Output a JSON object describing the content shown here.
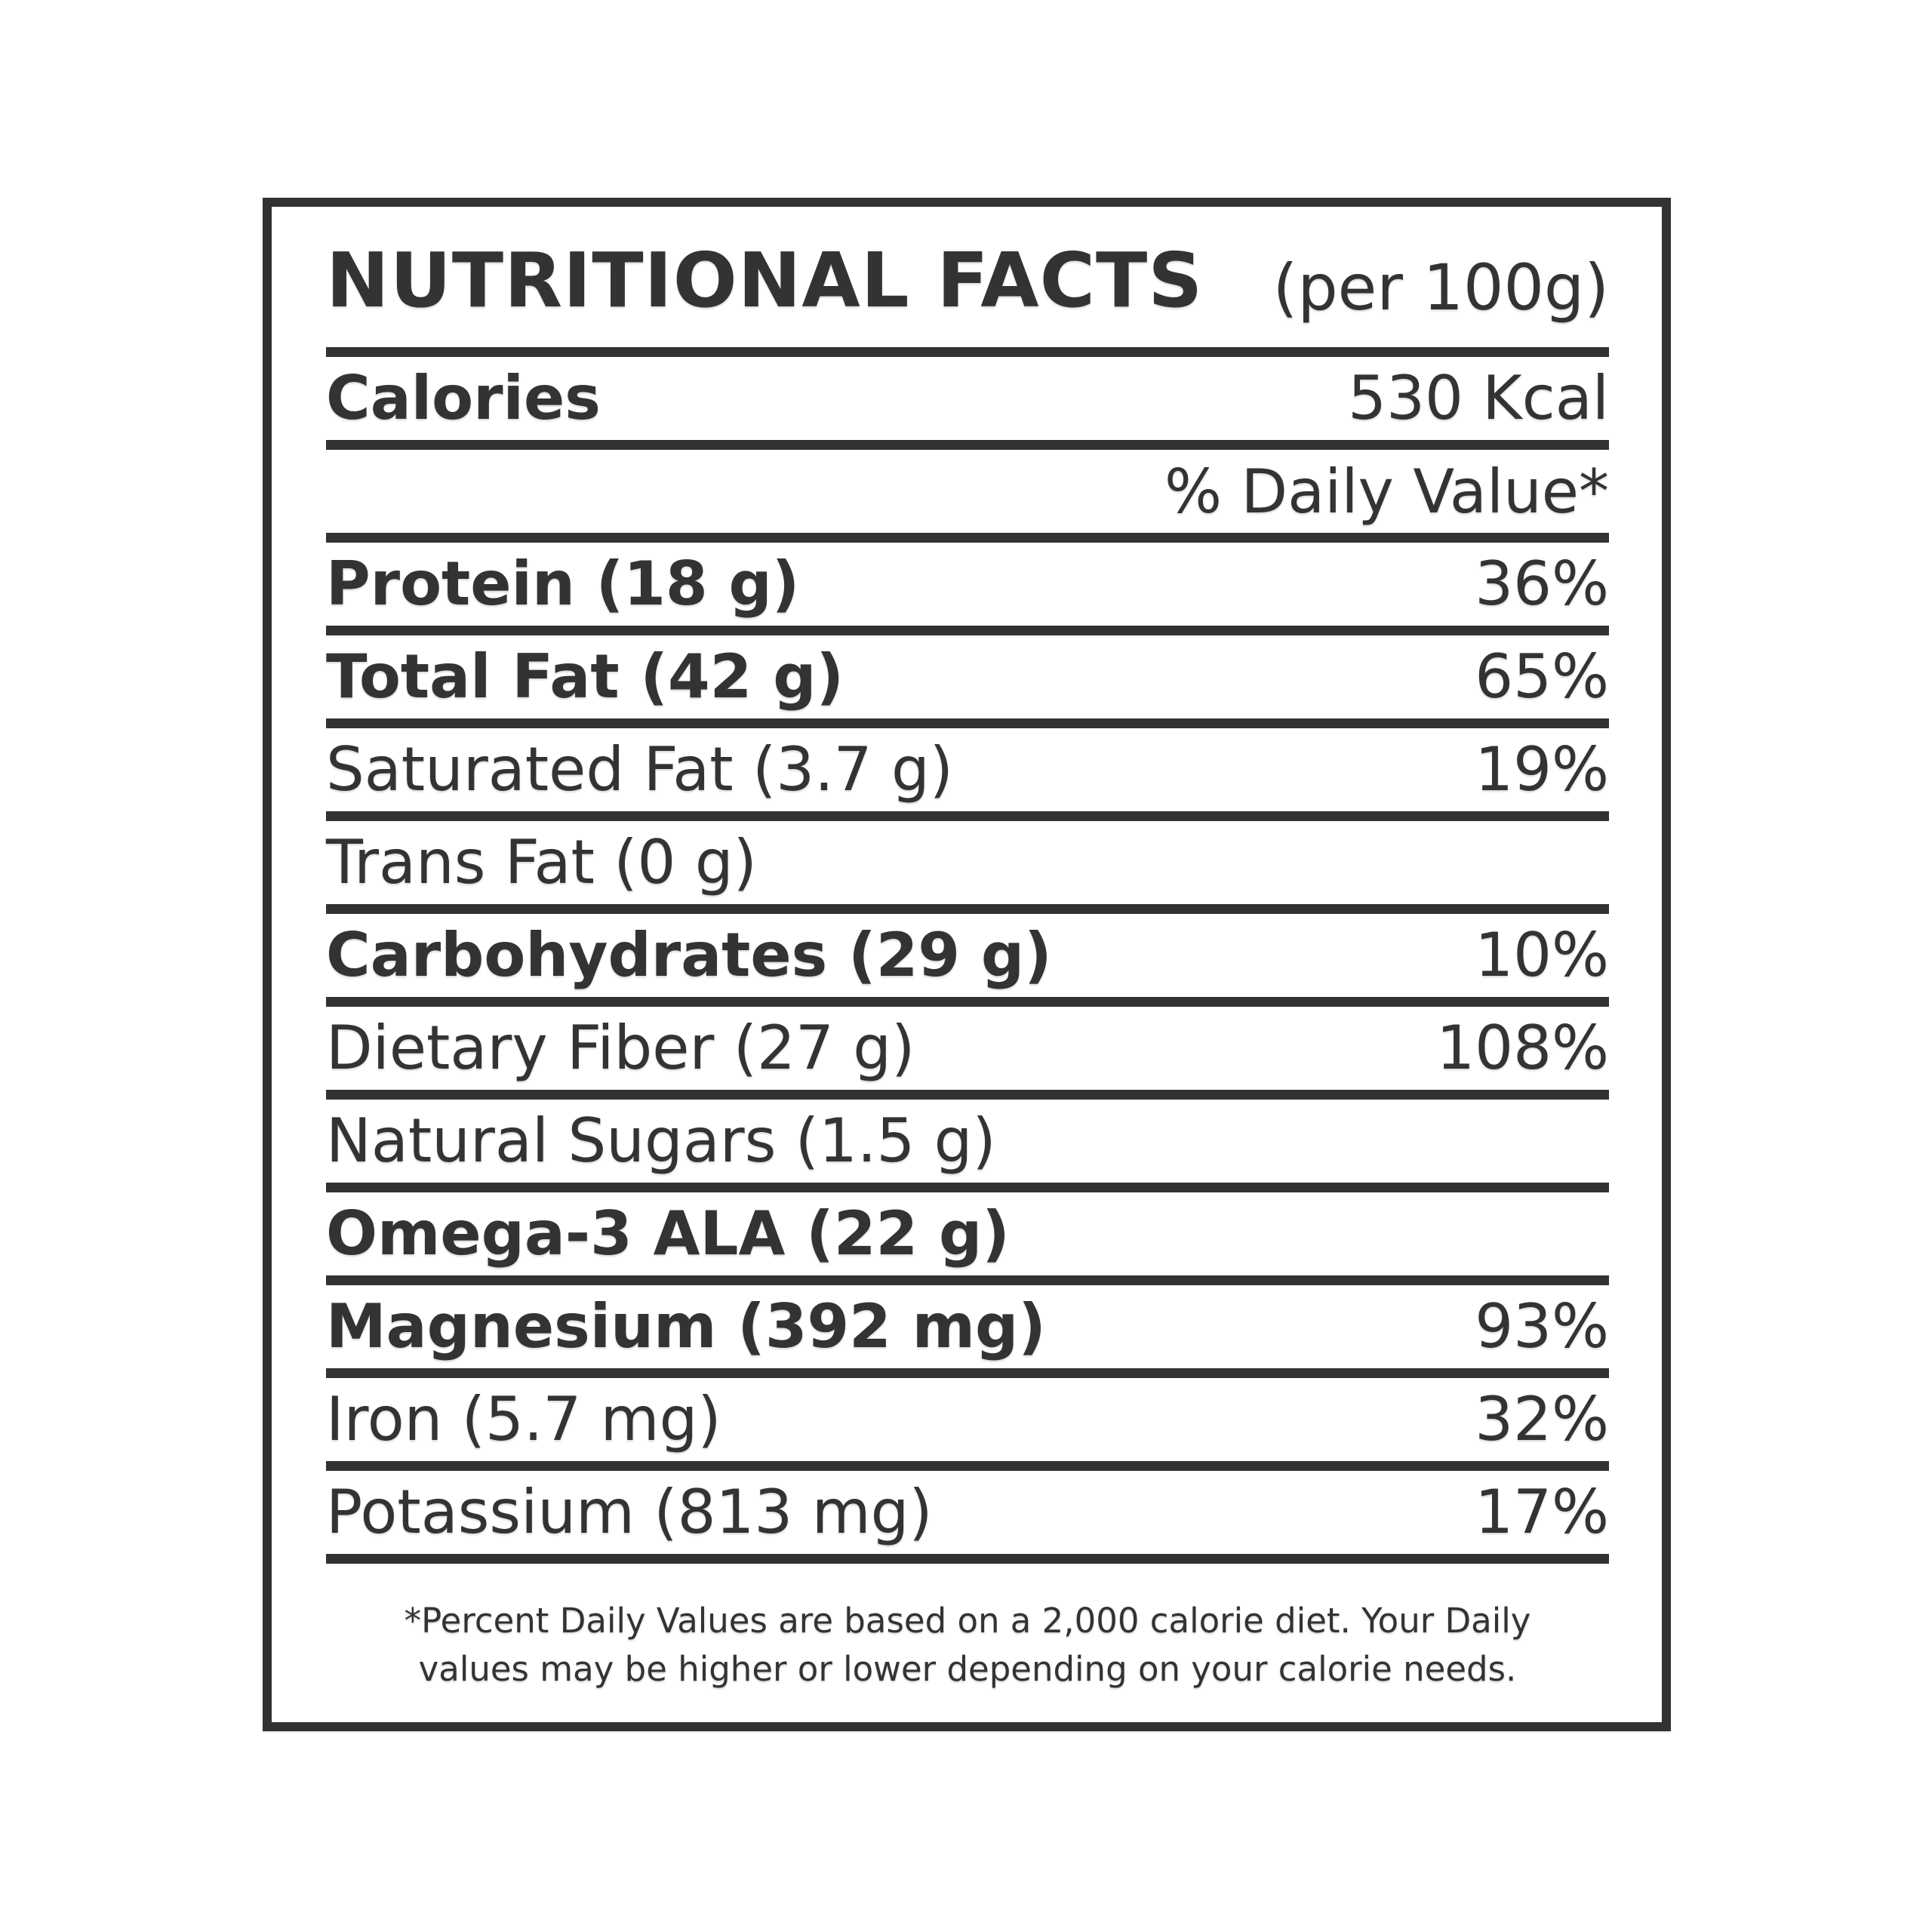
{
  "label": {
    "title": "NUTRITIONAL FACTS",
    "serving": "(per 100g)",
    "calories": {
      "name": "Calories",
      "value": "530 Kcal"
    },
    "daily_value_header": "% Daily Value*",
    "rows": [
      {
        "name": "Protein (18 g)",
        "dv": "36%"
      },
      {
        "name": "Total Fat (42 g)",
        "dv": "65%"
      },
      {
        "name": "Saturated Fat (3.7 g)",
        "dv": "19%"
      },
      {
        "name": "Trans Fat (0 g)",
        "dv": ""
      },
      {
        "name": "Carbohydrates (29 g)",
        "dv": "10%"
      },
      {
        "name": "Dietary Fiber (27 g)",
        "dv": "108%"
      },
      {
        "name": "Natural Sugars (1.5 g)",
        "dv": ""
      },
      {
        "name": "Omega-3 ALA (22 g)",
        "dv": ""
      },
      {
        "name": "Magnesium (392 mg)",
        "dv": "93%"
      },
      {
        "name": "Iron (5.7 mg)",
        "dv": "32%"
      },
      {
        "name": "Potassium (813 mg)",
        "dv": "17%"
      }
    ],
    "footnote_line1": "*Percent Daily Values are based on a 2,000 calorie diet. Your Daily",
    "footnote_line2": "values may be higher or lower depending on your calorie needs.",
    "colors": {
      "text": "#333333",
      "rule": "#323232",
      "background": "#ffffff"
    }
  }
}
